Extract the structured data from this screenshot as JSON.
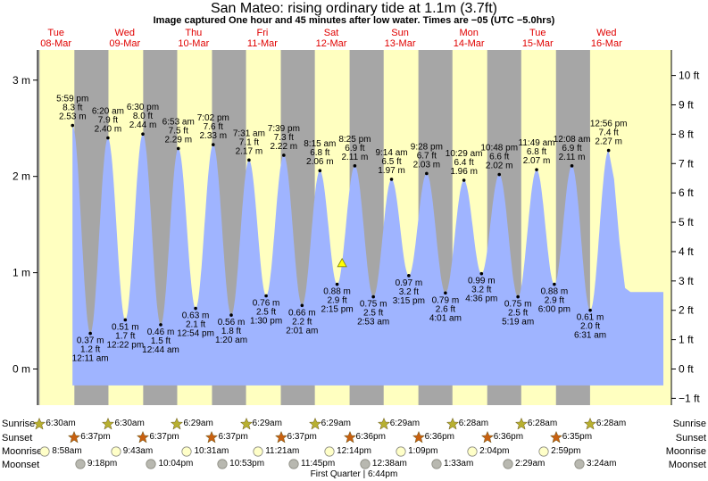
{
  "title": "San Mateo: rising  ordinary tide at 1.1m (3.7ft)",
  "subtitle": "Image captured One hour and 45 minutes after low water. Times are −05 (UTC −5.0hrs)",
  "colors": {
    "night": "#a6a6a6",
    "day": "#ffffc0",
    "water": "#9fb4ff",
    "day_label": "#e00000",
    "sun_star": "#b8b030",
    "sunset_star": "#c86010",
    "moonrise": "#ffffc8",
    "moonset": "#b8b8b0"
  },
  "chart_data": {
    "type": "area",
    "title": "San Mateo: rising  ordinary tide at 1.1m (3.7ft)",
    "y_left_unit": "m",
    "y_right_unit": "ft",
    "ylim_m": [
      -0.27,
      3.27
    ],
    "y_left_ticks": [
      "0 m",
      "1 m",
      "2 m",
      "3 m"
    ],
    "y_right_ticks": [
      "−1 ft",
      "0 ft",
      "1 ft",
      "2 ft",
      "3 ft",
      "4 ft",
      "5 ft",
      "6 ft",
      "7 ft",
      "8 ft",
      "9 ft",
      "10 ft"
    ],
    "days": [
      {
        "dow": "Tue",
        "date": "08-Mar"
      },
      {
        "dow": "Wed",
        "date": "09-Mar"
      },
      {
        "dow": "Thu",
        "date": "10-Mar"
      },
      {
        "dow": "Fri",
        "date": "11-Mar"
      },
      {
        "dow": "Sat",
        "date": "12-Mar"
      },
      {
        "dow": "Sun",
        "date": "13-Mar"
      },
      {
        "dow": "Mon",
        "date": "14-Mar"
      },
      {
        "dow": "Tue",
        "date": "15-Mar"
      },
      {
        "dow": "Wed",
        "date": "16-Mar"
      }
    ],
    "daylight": [
      {
        "sunrise": "06:30",
        "sunset": "18:37"
      },
      {
        "sunrise": "06:30",
        "sunset": "18:37"
      },
      {
        "sunrise": "06:29",
        "sunset": "18:37"
      },
      {
        "sunrise": "06:29",
        "sunset": "18:37"
      },
      {
        "sunrise": "06:29",
        "sunset": "18:36"
      },
      {
        "sunrise": "06:29",
        "sunset": "18:36"
      },
      {
        "sunrise": "06:28",
        "sunset": "18:36"
      },
      {
        "sunrise": "06:28",
        "sunset": "18:35"
      },
      {
        "sunrise": "06:28",
        "sunset": null
      }
    ],
    "tides": [
      {
        "type": "high",
        "day": 0,
        "time": "5:59 pm",
        "ft": "8.3 ft",
        "m": "2.53 m",
        "h": 17.98,
        "v": 2.53
      },
      {
        "type": "low",
        "day": 1,
        "time": "12:11 am",
        "ft": "1.2 ft",
        "m": "0.37 m",
        "h": 0.18,
        "v": 0.37
      },
      {
        "type": "high",
        "day": 1,
        "time": "6:20 am",
        "ft": "7.9 ft",
        "m": "2.40 m",
        "h": 6.33,
        "v": 2.4
      },
      {
        "type": "low",
        "day": 1,
        "time": "12:22 pm",
        "ft": "1.7 ft",
        "m": "0.51 m",
        "h": 12.37,
        "v": 0.51
      },
      {
        "type": "high",
        "day": 1,
        "time": "6:30 pm",
        "ft": "8.0 ft",
        "m": "2.44 m",
        "h": 18.5,
        "v": 2.44
      },
      {
        "type": "low",
        "day": 2,
        "time": "12:44 am",
        "ft": "1.5 ft",
        "m": "0.46 m",
        "h": 0.73,
        "v": 0.46
      },
      {
        "type": "high",
        "day": 2,
        "time": "6:53 am",
        "ft": "7.5 ft",
        "m": "2.29 m",
        "h": 6.88,
        "v": 2.29
      },
      {
        "type": "low",
        "day": 2,
        "time": "12:54 pm",
        "ft": "2.1 ft",
        "m": "0.63 m",
        "h": 12.9,
        "v": 0.63
      },
      {
        "type": "high",
        "day": 2,
        "time": "7:02 pm",
        "ft": "7.6 ft",
        "m": "2.33 m",
        "h": 19.03,
        "v": 2.33
      },
      {
        "type": "low",
        "day": 3,
        "time": "1:20 am",
        "ft": "1.8 ft",
        "m": "0.56 m",
        "h": 1.33,
        "v": 0.56
      },
      {
        "type": "high",
        "day": 3,
        "time": "7:31 am",
        "ft": "7.1 ft",
        "m": "2.17 m",
        "h": 7.52,
        "v": 2.17
      },
      {
        "type": "low",
        "day": 3,
        "time": "1:30 pm",
        "ft": "2.5 ft",
        "m": "0.76 m",
        "h": 13.5,
        "v": 0.76
      },
      {
        "type": "high",
        "day": 3,
        "time": "7:39 pm",
        "ft": "7.3 ft",
        "m": "2.22 m",
        "h": 19.65,
        "v": 2.22
      },
      {
        "type": "low",
        "day": 4,
        "time": "2:01 am",
        "ft": "2.2 ft",
        "m": "0.66 m",
        "h": 2.02,
        "v": 0.66
      },
      {
        "type": "high",
        "day": 4,
        "time": "8:15 am",
        "ft": "6.8 ft",
        "m": "2.06 m",
        "h": 8.25,
        "v": 2.06
      },
      {
        "type": "low",
        "day": 4,
        "time": "2:15 pm",
        "ft": "2.9 ft",
        "m": "0.88 m",
        "h": 14.25,
        "v": 0.88
      },
      {
        "type": "high",
        "day": 4,
        "time": "8:25 pm",
        "ft": "6.9 ft",
        "m": "2.11 m",
        "h": 20.42,
        "v": 2.11
      },
      {
        "type": "low",
        "day": 5,
        "time": "2:53 am",
        "ft": "2.5 ft",
        "m": "0.75 m",
        "h": 2.88,
        "v": 0.75
      },
      {
        "type": "high",
        "day": 5,
        "time": "9:14 am",
        "ft": "6.5 ft",
        "m": "1.97 m",
        "h": 9.23,
        "v": 1.97
      },
      {
        "type": "low",
        "day": 5,
        "time": "3:15 pm",
        "ft": "3.2 ft",
        "m": "0.97 m",
        "h": 15.25,
        "v": 0.97
      },
      {
        "type": "high",
        "day": 5,
        "time": "9:28 pm",
        "ft": "6.7 ft",
        "m": "2.03 m",
        "h": 21.47,
        "v": 2.03
      },
      {
        "type": "low",
        "day": 6,
        "time": "4:01 am",
        "ft": "2.6 ft",
        "m": "0.79 m",
        "h": 4.02,
        "v": 0.79
      },
      {
        "type": "high",
        "day": 6,
        "time": "10:29 am",
        "ft": "6.4 ft",
        "m": "1.96 m",
        "h": 10.48,
        "v": 1.96
      },
      {
        "type": "low",
        "day": 6,
        "time": "4:36 pm",
        "ft": "3.2 ft",
        "m": "0.99 m",
        "h": 16.6,
        "v": 0.99
      },
      {
        "type": "high",
        "day": 6,
        "time": "10:48 pm",
        "ft": "6.6 ft",
        "m": "2.02 m",
        "h": 22.8,
        "v": 2.02
      },
      {
        "type": "low",
        "day": 7,
        "time": "5:19 am",
        "ft": "2.5 ft",
        "m": "0.75 m",
        "h": 5.32,
        "v": 0.75
      },
      {
        "type": "high",
        "day": 7,
        "time": "11:49 am",
        "ft": "6.8 ft",
        "m": "2.07 m",
        "h": 11.82,
        "v": 2.07
      },
      {
        "type": "low",
        "day": 7,
        "time": "6:00 pm",
        "ft": "2.9 ft",
        "m": "0.88 m",
        "h": 18.0,
        "v": 0.88
      },
      {
        "type": "high",
        "day": 8,
        "time": "12:08 am",
        "ft": "6.9 ft",
        "m": "2.11 m",
        "h": 0.13,
        "v": 2.11
      },
      {
        "type": "low",
        "day": 8,
        "time": "6:31 am",
        "ft": "2.0 ft",
        "m": "0.61 m",
        "h": 6.52,
        "v": 0.61
      },
      {
        "type": "high",
        "day": 8,
        "time": "12:56 pm",
        "ft": "7.4 ft",
        "m": "2.27 m",
        "h": 12.93,
        "v": 2.27
      }
    ],
    "current": {
      "day": 4,
      "h": 15.98,
      "m": 1.1,
      "ft": 3.7,
      "state": "rising"
    }
  },
  "rows": {
    "sunrise_label": "Sunrise",
    "sunset_label": "Sunset",
    "moonrise_label": "Moonrise",
    "moonset_label": "Moonset",
    "sunrise": [
      {
        "day": 0,
        "h": 6.5,
        "text": "6:30am"
      },
      {
        "day": 1,
        "h": 6.5,
        "text": "6:30am"
      },
      {
        "day": 2,
        "h": 6.48,
        "text": "6:29am"
      },
      {
        "day": 3,
        "h": 6.48,
        "text": "6:29am"
      },
      {
        "day": 4,
        "h": 6.48,
        "text": "6:29am"
      },
      {
        "day": 5,
        "h": 6.48,
        "text": "6:29am"
      },
      {
        "day": 6,
        "h": 6.47,
        "text": "6:28am"
      },
      {
        "day": 7,
        "h": 6.47,
        "text": "6:28am"
      },
      {
        "day": 8,
        "h": 6.47,
        "text": "6:28am"
      }
    ],
    "sunset": [
      {
        "day": 0,
        "h": 18.62,
        "text": "6:37pm"
      },
      {
        "day": 1,
        "h": 18.62,
        "text": "6:37pm"
      },
      {
        "day": 2,
        "h": 18.62,
        "text": "6:37pm"
      },
      {
        "day": 3,
        "h": 18.62,
        "text": "6:37pm"
      },
      {
        "day": 4,
        "h": 18.6,
        "text": "6:36pm"
      },
      {
        "day": 5,
        "h": 18.6,
        "text": "6:36pm"
      },
      {
        "day": 6,
        "h": 18.6,
        "text": "6:36pm"
      },
      {
        "day": 7,
        "h": 18.58,
        "text": "6:35pm"
      }
    ],
    "moonrise": [
      {
        "day": 0,
        "h": 8.97,
        "text": "8:58am"
      },
      {
        "day": 1,
        "h": 9.72,
        "text": "9:43am"
      },
      {
        "day": 2,
        "h": 10.52,
        "text": "10:31am"
      },
      {
        "day": 3,
        "h": 11.35,
        "text": "11:21am"
      },
      {
        "day": 4,
        "h": 12.23,
        "text": "12:14pm"
      },
      {
        "day": 5,
        "h": 13.15,
        "text": "1:09pm"
      },
      {
        "day": 6,
        "h": 14.07,
        "text": "2:04pm"
      },
      {
        "day": 7,
        "h": 14.98,
        "text": "2:59pm"
      }
    ],
    "moonset": [
      {
        "day": 0,
        "h": 21.3,
        "text": "9:18pm"
      },
      {
        "day": 1,
        "h": 22.07,
        "text": "10:04pm"
      },
      {
        "day": 2,
        "h": 22.88,
        "text": "10:53pm"
      },
      {
        "day": 3,
        "h": 23.75,
        "text": "11:45pm"
      },
      {
        "day": 5,
        "h": 0.63,
        "text": "12:38am"
      },
      {
        "day": 6,
        "h": 1.55,
        "text": "1:33am"
      },
      {
        "day": 7,
        "h": 2.48,
        "text": "2:29am"
      },
      {
        "day": 8,
        "h": 3.4,
        "text": "3:24am"
      }
    ],
    "moon_phase": "First Quarter | 6:44pm"
  }
}
